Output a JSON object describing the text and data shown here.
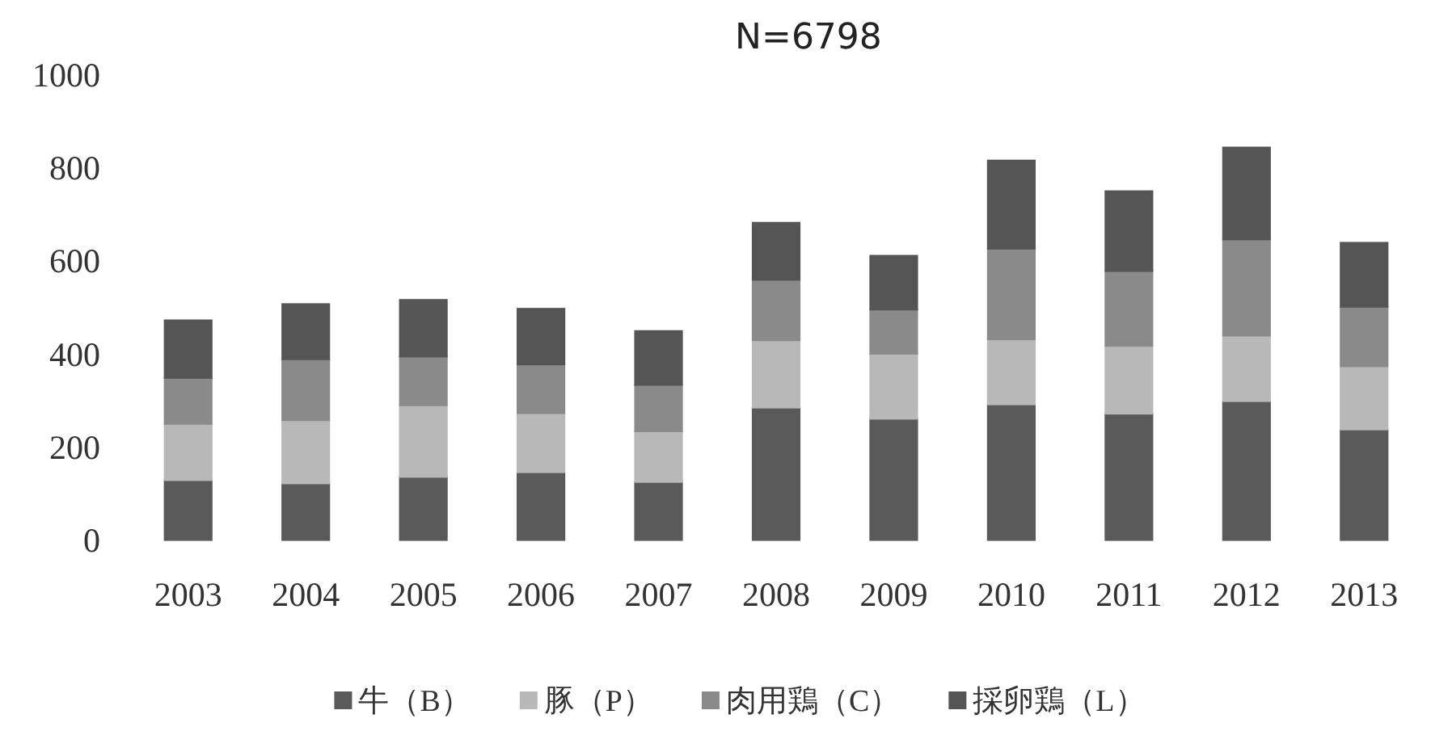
{
  "chart_data": {
    "type": "bar",
    "stacked": true,
    "title": "N=6798",
    "categories": [
      "2003",
      "2004",
      "2005",
      "2006",
      "2007",
      "2008",
      "2009",
      "2010",
      "2011",
      "2012",
      "2013"
    ],
    "series": [
      {
        "name": "牛（B）",
        "color": "#5a5a5a",
        "values": [
          129,
          122,
          136,
          146,
          125,
          285,
          261,
          292,
          272,
          299,
          238
        ]
      },
      {
        "name": "豚（P）",
        "color": "#b8b8b8",
        "values": [
          121,
          136,
          154,
          127,
          109,
          145,
          140,
          140,
          146,
          141,
          136
        ]
      },
      {
        "name": "肉用鶏（C）",
        "color": "#8a8a8a",
        "values": [
          99,
          131,
          105,
          105,
          100,
          130,
          95,
          195,
          161,
          207,
          128
        ]
      },
      {
        "name": "採卵鶏（L）",
        "color": "#555555",
        "values": [
          124,
          119,
          122,
          120,
          116,
          123,
          116,
          190,
          172,
          198,
          138
        ]
      }
    ],
    "ylim": [
      0,
      1000
    ],
    "yticks": [
      0,
      200,
      400,
      600,
      800,
      1000
    ],
    "legend": "bottom",
    "grid": false
  }
}
